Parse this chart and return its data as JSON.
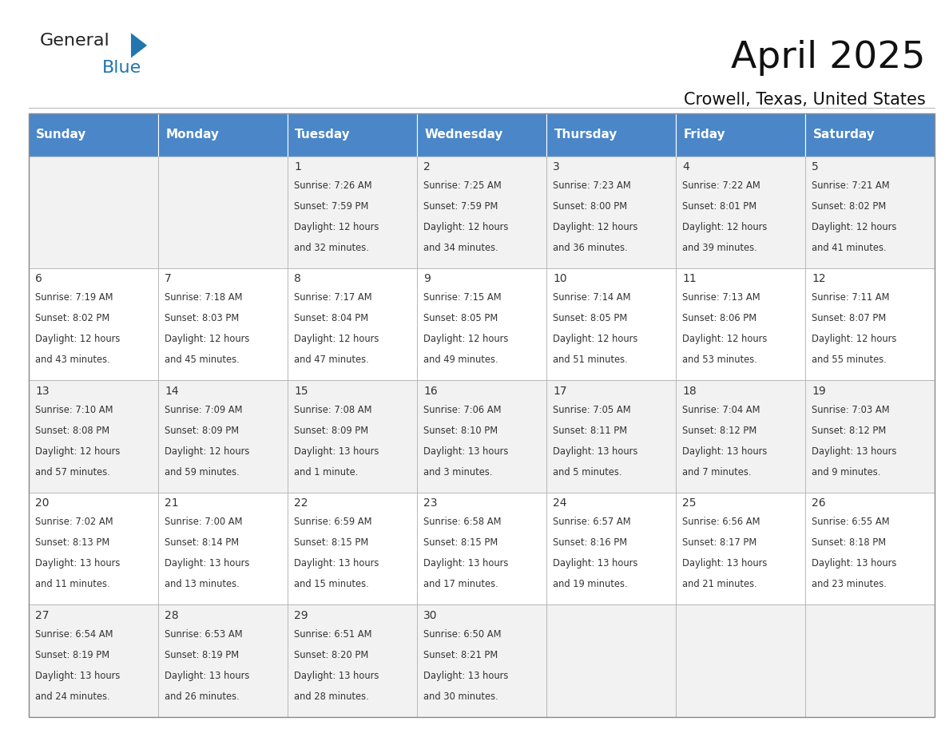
{
  "title": "April 2025",
  "subtitle": "Crowell, Texas, United States",
  "days_of_week": [
    "Sunday",
    "Monday",
    "Tuesday",
    "Wednesday",
    "Thursday",
    "Friday",
    "Saturday"
  ],
  "header_bg": "#4A86C8",
  "header_text": "#FFFFFF",
  "cell_bg_odd": "#F2F2F2",
  "cell_bg_even": "#FFFFFF",
  "cell_text": "#333333",
  "grid_color": "#AAAAAA",
  "weeks": [
    [
      {
        "day": "",
        "sunrise": "",
        "sunset": "",
        "daylight": ""
      },
      {
        "day": "",
        "sunrise": "",
        "sunset": "",
        "daylight": ""
      },
      {
        "day": "1",
        "sunrise": "7:26 AM",
        "sunset": "7:59 PM",
        "daylight": "12 hours and 32 minutes."
      },
      {
        "day": "2",
        "sunrise": "7:25 AM",
        "sunset": "7:59 PM",
        "daylight": "12 hours and 34 minutes."
      },
      {
        "day": "3",
        "sunrise": "7:23 AM",
        "sunset": "8:00 PM",
        "daylight": "12 hours and 36 minutes."
      },
      {
        "day": "4",
        "sunrise": "7:22 AM",
        "sunset": "8:01 PM",
        "daylight": "12 hours and 39 minutes."
      },
      {
        "day": "5",
        "sunrise": "7:21 AM",
        "sunset": "8:02 PM",
        "daylight": "12 hours and 41 minutes."
      }
    ],
    [
      {
        "day": "6",
        "sunrise": "7:19 AM",
        "sunset": "8:02 PM",
        "daylight": "12 hours and 43 minutes."
      },
      {
        "day": "7",
        "sunrise": "7:18 AM",
        "sunset": "8:03 PM",
        "daylight": "12 hours and 45 minutes."
      },
      {
        "day": "8",
        "sunrise": "7:17 AM",
        "sunset": "8:04 PM",
        "daylight": "12 hours and 47 minutes."
      },
      {
        "day": "9",
        "sunrise": "7:15 AM",
        "sunset": "8:05 PM",
        "daylight": "12 hours and 49 minutes."
      },
      {
        "day": "10",
        "sunrise": "7:14 AM",
        "sunset": "8:05 PM",
        "daylight": "12 hours and 51 minutes."
      },
      {
        "day": "11",
        "sunrise": "7:13 AM",
        "sunset": "8:06 PM",
        "daylight": "12 hours and 53 minutes."
      },
      {
        "day": "12",
        "sunrise": "7:11 AM",
        "sunset": "8:07 PM",
        "daylight": "12 hours and 55 minutes."
      }
    ],
    [
      {
        "day": "13",
        "sunrise": "7:10 AM",
        "sunset": "8:08 PM",
        "daylight": "12 hours and 57 minutes."
      },
      {
        "day": "14",
        "sunrise": "7:09 AM",
        "sunset": "8:09 PM",
        "daylight": "12 hours and 59 minutes."
      },
      {
        "day": "15",
        "sunrise": "7:08 AM",
        "sunset": "8:09 PM",
        "daylight": "13 hours and 1 minute."
      },
      {
        "day": "16",
        "sunrise": "7:06 AM",
        "sunset": "8:10 PM",
        "daylight": "13 hours and 3 minutes."
      },
      {
        "day": "17",
        "sunrise": "7:05 AM",
        "sunset": "8:11 PM",
        "daylight": "13 hours and 5 minutes."
      },
      {
        "day": "18",
        "sunrise": "7:04 AM",
        "sunset": "8:12 PM",
        "daylight": "13 hours and 7 minutes."
      },
      {
        "day": "19",
        "sunrise": "7:03 AM",
        "sunset": "8:12 PM",
        "daylight": "13 hours and 9 minutes."
      }
    ],
    [
      {
        "day": "20",
        "sunrise": "7:02 AM",
        "sunset": "8:13 PM",
        "daylight": "13 hours and 11 minutes."
      },
      {
        "day": "21",
        "sunrise": "7:00 AM",
        "sunset": "8:14 PM",
        "daylight": "13 hours and 13 minutes."
      },
      {
        "day": "22",
        "sunrise": "6:59 AM",
        "sunset": "8:15 PM",
        "daylight": "13 hours and 15 minutes."
      },
      {
        "day": "23",
        "sunrise": "6:58 AM",
        "sunset": "8:15 PM",
        "daylight": "13 hours and 17 minutes."
      },
      {
        "day": "24",
        "sunrise": "6:57 AM",
        "sunset": "8:16 PM",
        "daylight": "13 hours and 19 minutes."
      },
      {
        "day": "25",
        "sunrise": "6:56 AM",
        "sunset": "8:17 PM",
        "daylight": "13 hours and 21 minutes."
      },
      {
        "day": "26",
        "sunrise": "6:55 AM",
        "sunset": "8:18 PM",
        "daylight": "13 hours and 23 minutes."
      }
    ],
    [
      {
        "day": "27",
        "sunrise": "6:54 AM",
        "sunset": "8:19 PM",
        "daylight": "13 hours and 24 minutes."
      },
      {
        "day": "28",
        "sunrise": "6:53 AM",
        "sunset": "8:19 PM",
        "daylight": "13 hours and 26 minutes."
      },
      {
        "day": "29",
        "sunrise": "6:51 AM",
        "sunset": "8:20 PM",
        "daylight": "13 hours and 28 minutes."
      },
      {
        "day": "30",
        "sunrise": "6:50 AM",
        "sunset": "8:21 PM",
        "daylight": "13 hours and 30 minutes."
      },
      {
        "day": "",
        "sunrise": "",
        "sunset": "",
        "daylight": ""
      },
      {
        "day": "",
        "sunrise": "",
        "sunset": "",
        "daylight": ""
      },
      {
        "day": "",
        "sunrise": "",
        "sunset": "",
        "daylight": ""
      }
    ]
  ],
  "logo_general_color": "#222222",
  "logo_blue_color": "#2176AE",
  "logo_triangle_color": "#2176AE"
}
